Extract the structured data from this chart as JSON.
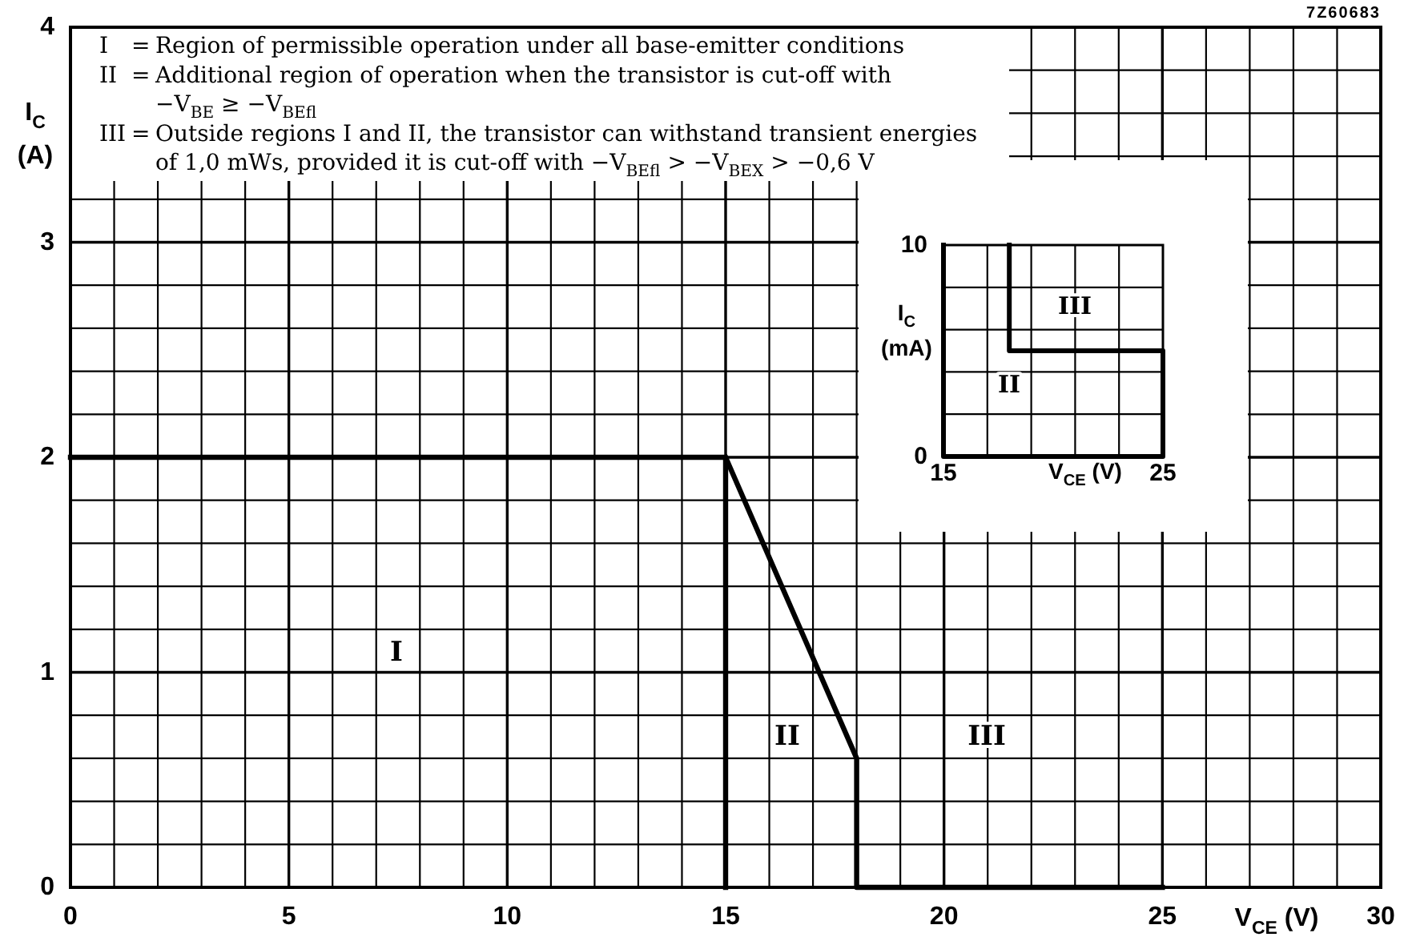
{
  "chart_data": [
    {
      "type": "line",
      "xlabel": "V$_{CE}$ (V)",
      "ylabel": "I$_{C}$ (A)",
      "xlim": [
        0,
        30
      ],
      "ylim": [
        0,
        4
      ],
      "xticks": [
        0,
        {
          "value": 1,
          "label": null
        },
        {
          "value": 2,
          "label": null
        },
        {
          "value": 3,
          "label": null
        },
        {
          "value": 4,
          "label": null
        },
        5,
        {
          "value": 6,
          "label": null
        },
        {
          "value": 7,
          "label": null
        },
        {
          "value": 8,
          "label": null
        },
        {
          "value": 9,
          "label": null
        },
        10,
        {
          "value": 11,
          "label": null
        },
        {
          "value": 12,
          "label": null
        },
        {
          "value": 13,
          "label": null
        },
        {
          "value": 14,
          "label": null
        },
        15,
        {
          "value": 16,
          "label": null
        },
        {
          "value": 17,
          "label": null
        },
        {
          "value": 18,
          "label": null
        },
        {
          "value": 19,
          "label": null
        },
        20,
        {
          "value": 21,
          "label": null
        },
        {
          "value": 22,
          "label": null
        },
        {
          "value": 23,
          "label": null
        },
        {
          "value": 24,
          "label": null
        },
        25,
        {
          "value": 26,
          "label": null
        },
        {
          "value": 27,
          "label": null
        },
        {
          "value": 28,
          "label": null
        },
        {
          "value": 29,
          "label": null
        },
        30
      ],
      "yticks": [
        0,
        {
          "value": 0.2,
          "label": null
        },
        {
          "value": 0.4,
          "label": null
        },
        {
          "value": 0.6,
          "label": null
        },
        {
          "value": 0.8,
          "label": null
        },
        1,
        {
          "value": 1.2,
          "label": null
        },
        {
          "value": 1.4,
          "label": null
        },
        {
          "value": 1.6,
          "label": null
        },
        {
          "value": 1.8,
          "label": null
        },
        2,
        {
          "value": 2.2,
          "label": null
        },
        {
          "value": 2.4,
          "label": null
        },
        {
          "value": 2.6,
          "label": null
        },
        {
          "value": 2.8,
          "label": null
        },
        3,
        {
          "value": 3.2,
          "label": null
        },
        {
          "value": 3.4,
          "label": null
        },
        {
          "value": 3.6,
          "label": null
        },
        {
          "value": 3.8,
          "label": null
        },
        4
      ],
      "grid": true,
      "series": [
        {
          "color": "#000000",
          "x": [
            0,
            15,
            15
          ],
          "values": [
            2,
            2,
            0
          ]
        },
        {
          "color": "#000000",
          "x": [
            15,
            18,
            18,
            25
          ],
          "values": [
            2,
            0.6,
            0,
            0
          ]
        }
      ],
      "annotations": [
        "7Z60683",
        "I = Region of permissible operation under all base-emitter conditions",
        "II = Additional region of operation when the transistor is cut-off with\n−V$_{BE}$ ≥ −V$_{BEfl}$",
        "III = Outside regions I and II, the transistor can withstand transient energies\nof 1,0 mWs, provided it is cut-off with −V$_{BEfl}$ > −V$_{BEX}$ > −0,6 V",
        "I",
        "II",
        "III"
      ]
    },
    {
      "type": "line",
      "xlabel": "V$_{CE}$ (V)",
      "ylabel": "I$_{C}$ (mA)",
      "xlim": [
        15,
        25
      ],
      "ylim": [
        0,
        10
      ],
      "xticks": [
        15,
        {
          "value": 17,
          "label": null
        },
        {
          "value": 19,
          "label": null
        },
        {
          "value": 21,
          "label": null
        },
        {
          "value": 23,
          "label": null
        },
        25
      ],
      "yticks": [
        0,
        {
          "value": 2,
          "label": null
        },
        {
          "value": 4,
          "label": null
        },
        {
          "value": 6,
          "label": null
        },
        {
          "value": 8,
          "label": null
        },
        10
      ],
      "grid": true,
      "series": [
        {
          "color": "#000000",
          "x": [
            18,
            18,
            25,
            25,
            15,
            15
          ],
          "values": [
            10,
            5,
            5,
            0,
            0,
            10
          ]
        }
      ],
      "annotations": [
        "III",
        "II"
      ]
    }
  ]
}
